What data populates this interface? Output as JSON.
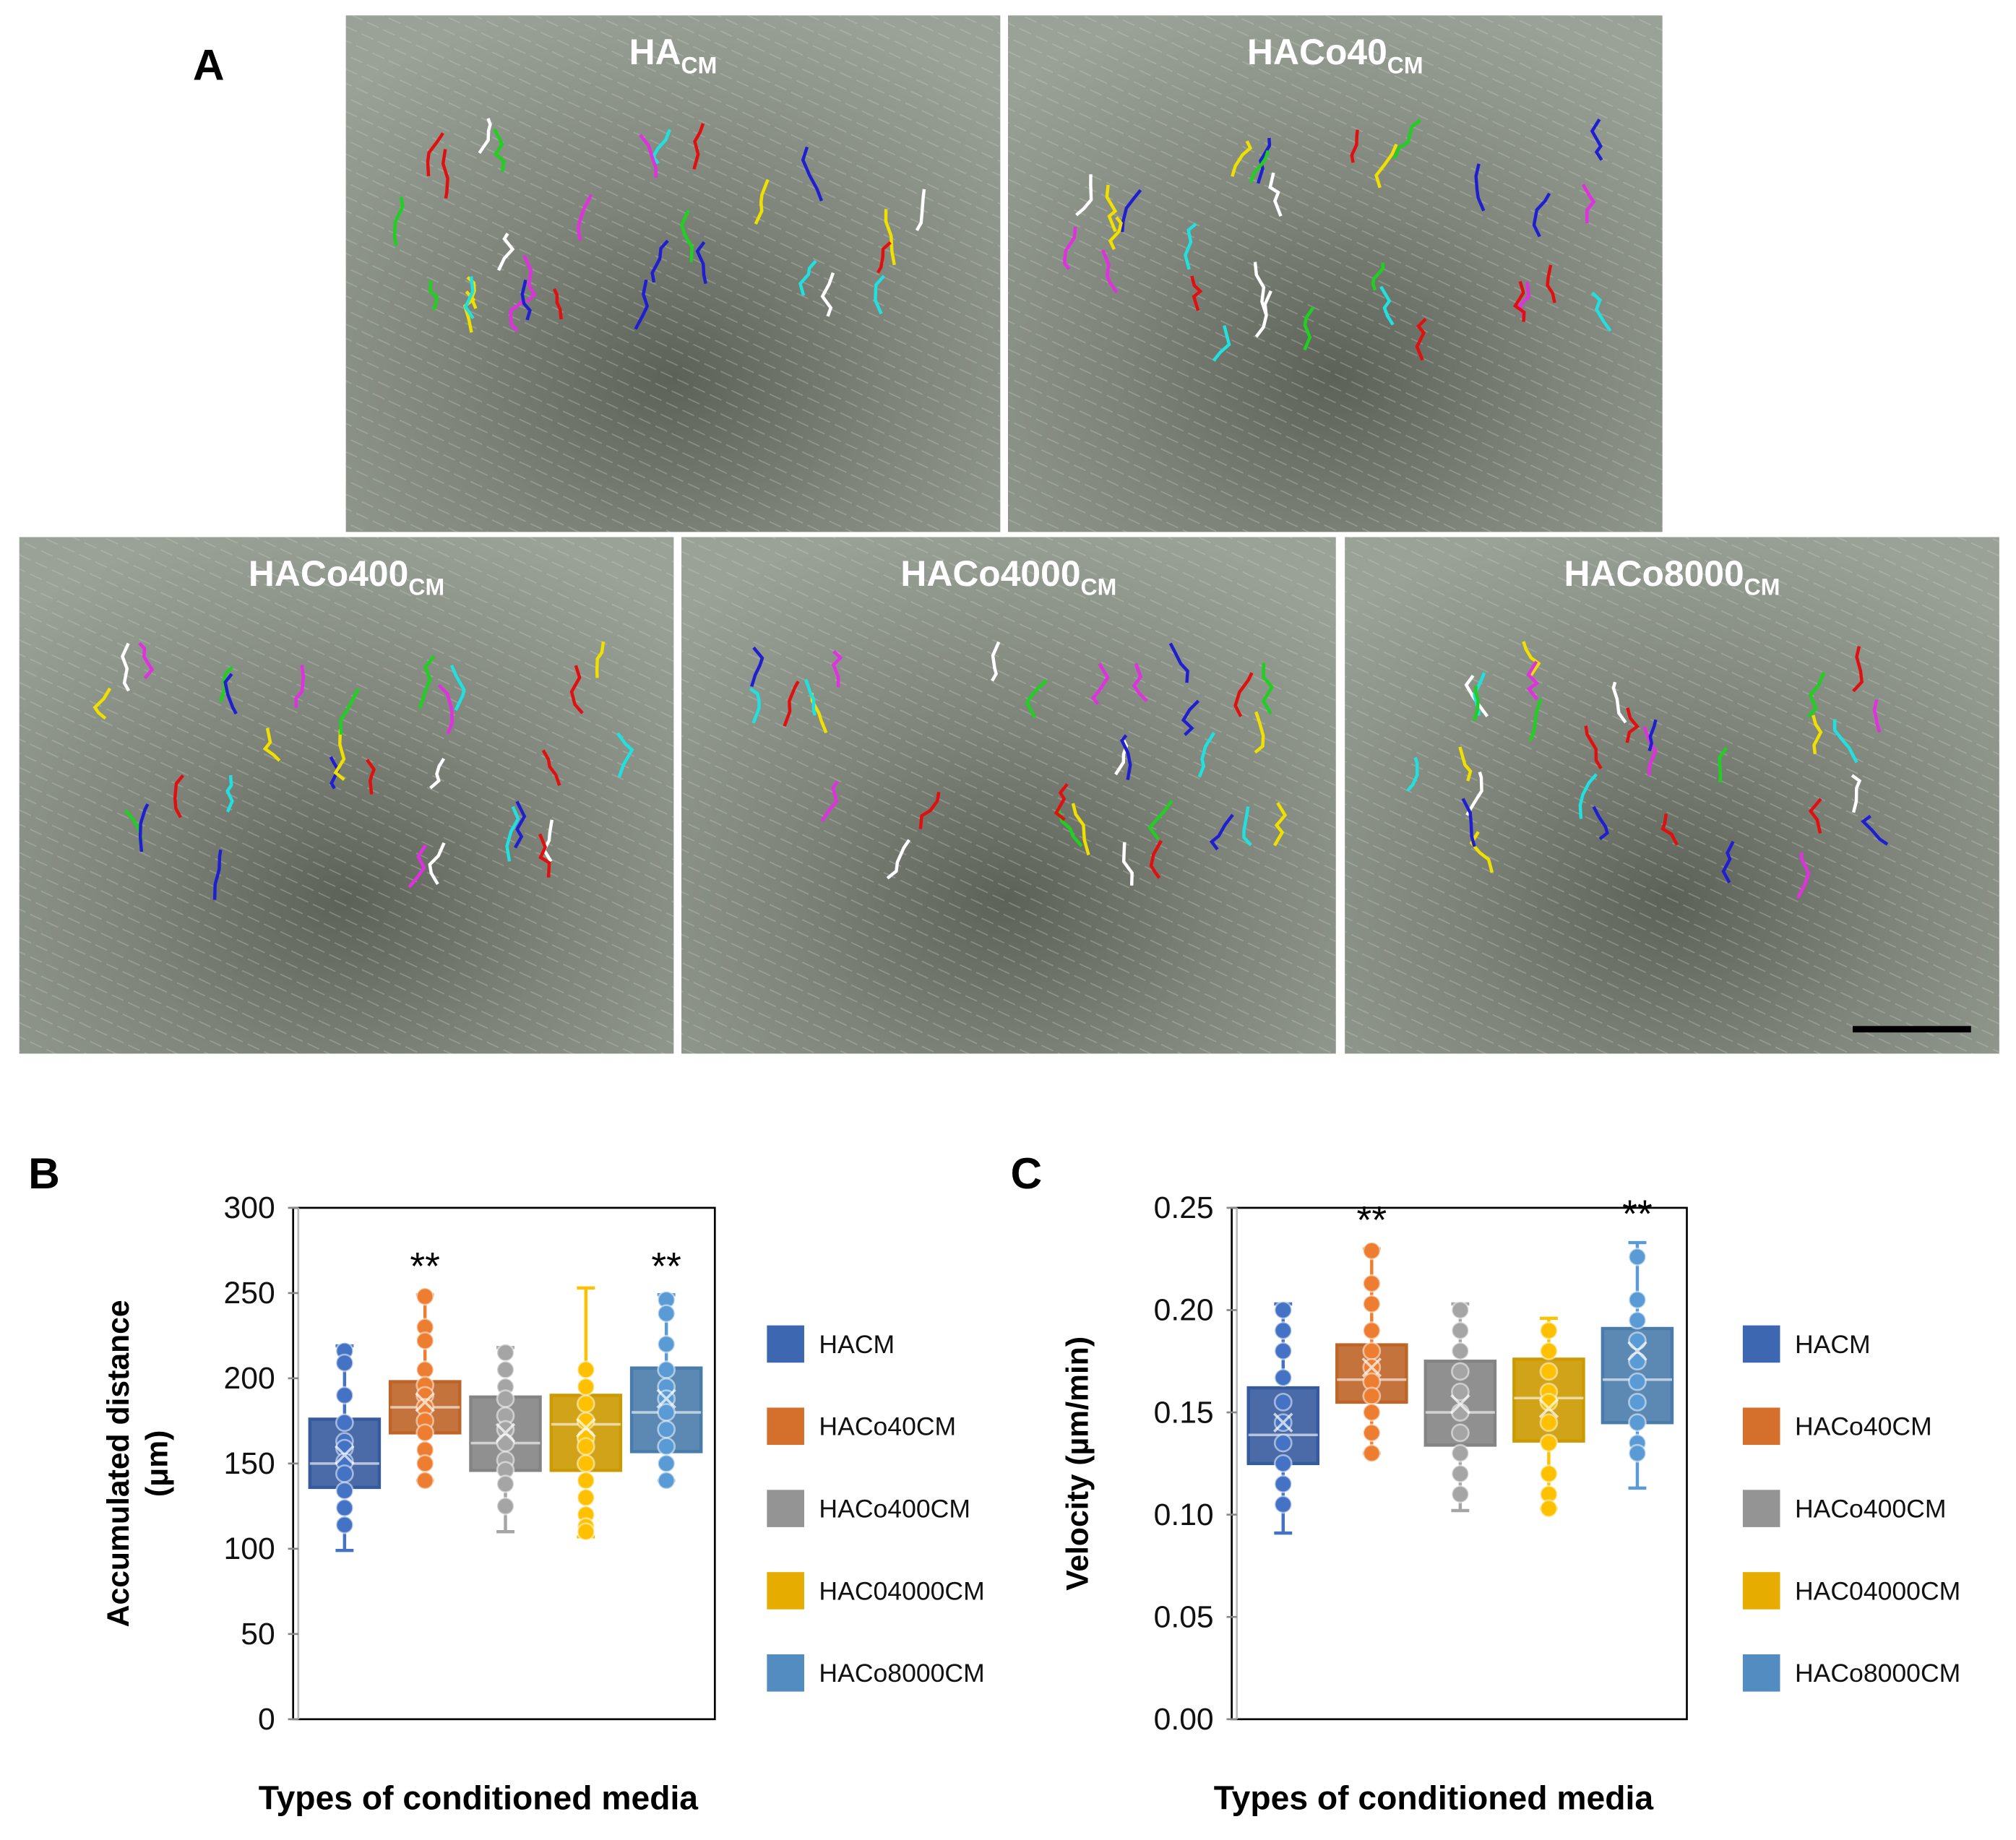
{
  "panel_a": {
    "label": "A",
    "images": [
      {
        "title": "HA",
        "subscript": "CM"
      },
      {
        "title": "HACo40",
        "subscript": "CM"
      },
      {
        "title": "HACo400",
        "subscript": "CM"
      },
      {
        "title": "HACo4000",
        "subscript": "CM"
      },
      {
        "title": "HACo8000",
        "subscript": "CM"
      }
    ]
  },
  "chart_data": [
    {
      "type": "box",
      "panel_label": "B",
      "y_label": [
        "Accumulated distance",
        "(μm)"
      ],
      "x_label": "Types of conditioned media",
      "ylim": [
        0,
        300
      ],
      "yticks": [
        0,
        50,
        100,
        150,
        200,
        250,
        300
      ],
      "legend": "right",
      "series": [
        {
          "name": "HACM",
          "color": "#4472c4",
          "min": 99,
          "q1": 136,
          "median": 150,
          "q3": 176,
          "max": 219,
          "mean": 155,
          "points": [
            216,
            209,
            190,
            174,
            163,
            159,
            151,
            144,
            134,
            124,
            114
          ]
        },
        {
          "name": "HACo40CM",
          "color": "#ed7d31",
          "min": 140,
          "q1": 168,
          "median": 183,
          "q3": 198,
          "max": 249,
          "mean": 186,
          "annotation": "**",
          "points": [
            248,
            230,
            222,
            205,
            196,
            190,
            183,
            175,
            168,
            158,
            150,
            140
          ]
        },
        {
          "name": "HACo400CM",
          "color": "#a5a5a5",
          "min": 110,
          "q1": 146,
          "median": 162,
          "q3": 189,
          "max": 218,
          "mean": 168,
          "points": [
            215,
            205,
            195,
            188,
            178,
            170,
            162,
            152,
            146,
            138,
            125
          ]
        },
        {
          "name": "HAC04000CM",
          "color": "#ffc000",
          "min": 107,
          "q1": 146,
          "median": 173,
          "q3": 190,
          "max": 253,
          "mean": 171,
          "points": [
            205,
            195,
            185,
            175,
            165,
            160,
            150,
            140,
            130,
            120,
            113,
            110
          ]
        },
        {
          "name": "HACo8000CM",
          "color": "#5b9bd5",
          "min": 140,
          "q1": 157,
          "median": 180,
          "q3": 206,
          "max": 249,
          "mean": 188,
          "annotation": "**",
          "points": [
            246,
            238,
            220,
            205,
            195,
            188,
            180,
            170,
            160,
            150,
            140
          ]
        }
      ]
    },
    {
      "type": "box",
      "panel_label": "C",
      "y_label": [
        "Velocity (µm/min)"
      ],
      "x_label": "Types of conditioned media",
      "ylim": [
        0,
        0.25
      ],
      "legend": "right",
      "yticks": [
        {
          "value": 0,
          "label": "0.00"
        },
        {
          "value": 0.05,
          "label": "0.05"
        },
        {
          "value": 0.1,
          "label": "0.10"
        },
        {
          "value": 0.15,
          "label": "0.15"
        },
        {
          "value": 0.2,
          "label": "0.20"
        },
        {
          "value": 0.25,
          "label": "0.25"
        }
      ],
      "series": [
        {
          "name": "HACM",
          "color": "#4472c4",
          "min": 0.091,
          "q1": 0.125,
          "median": 0.139,
          "q3": 0.162,
          "max": 0.203,
          "mean": 0.145,
          "points": [
            0.2,
            0.19,
            0.18,
            0.167,
            0.155,
            0.145,
            0.135,
            0.125,
            0.115,
            0.105
          ]
        },
        {
          "name": "HACo40CM",
          "color": "#ed7d31",
          "min": 0.13,
          "q1": 0.155,
          "median": 0.166,
          "q3": 0.183,
          "max": 0.23,
          "mean": 0.172,
          "annotation": "**",
          "points": [
            0.229,
            0.213,
            0.203,
            0.19,
            0.18,
            0.172,
            0.165,
            0.158,
            0.15,
            0.14,
            0.13
          ]
        },
        {
          "name": "HACo400CM",
          "color": "#a5a5a5",
          "min": 0.102,
          "q1": 0.134,
          "median": 0.15,
          "q3": 0.175,
          "max": 0.203,
          "mean": 0.154,
          "points": [
            0.2,
            0.19,
            0.18,
            0.17,
            0.16,
            0.15,
            0.14,
            0.13,
            0.12,
            0.11
          ]
        },
        {
          "name": "HAC04000CM",
          "color": "#ffc000",
          "min": 0.103,
          "q1": 0.136,
          "median": 0.157,
          "q3": 0.176,
          "max": 0.196,
          "mean": 0.152,
          "points": [
            0.19,
            0.18,
            0.17,
            0.16,
            0.155,
            0.145,
            0.135,
            0.12,
            0.11,
            0.103
          ]
        },
        {
          "name": "HACo8000CM",
          "color": "#5b9bd5",
          "min": 0.113,
          "q1": 0.145,
          "median": 0.166,
          "q3": 0.191,
          "max": 0.233,
          "mean": 0.18,
          "annotation": "**",
          "points": [
            0.226,
            0.205,
            0.195,
            0.185,
            0.175,
            0.165,
            0.155,
            0.145,
            0.135,
            0.13
          ]
        }
      ]
    }
  ]
}
